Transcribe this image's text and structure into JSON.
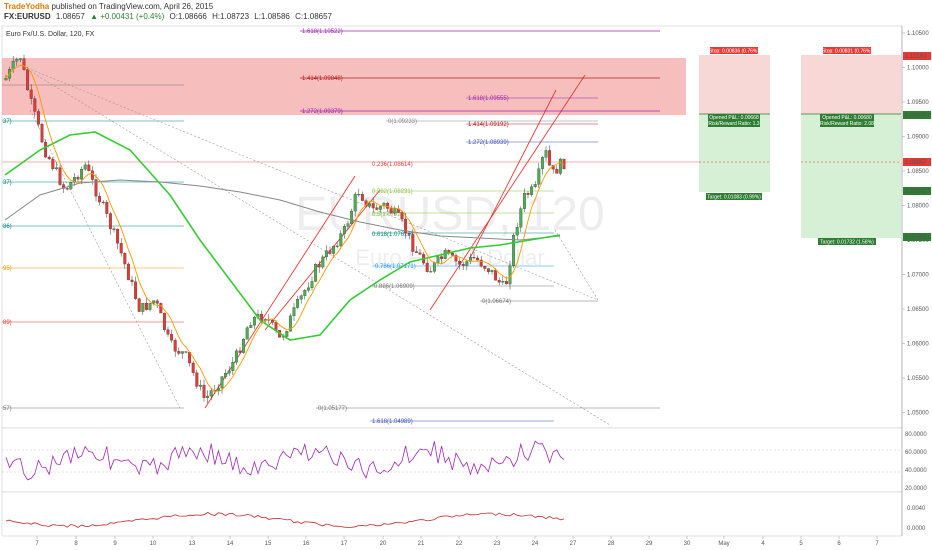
{
  "header": {
    "brand": "TradeYodha",
    "published": "published on TradingView.com, April 26, 2015",
    "symbol": "FX:EURUSD",
    "last": "1.08657",
    "change": "▲ +0.00431 (+0.4%)",
    "open": "O:1.08666",
    "high": "H:1.08723",
    "low": "L:1.08586",
    "close": "C:1.08657"
  },
  "chart_title": "Euro Fx/U.S. Dollar, 120, FX",
  "watermark": {
    "symbol": "EURUSD, 120",
    "name": "Euro Fx/U.S. Dollar"
  },
  "colors": {
    "up_candle": "#4caf50",
    "down_candle": "#e53935",
    "sma_slow": "#ff9800",
    "ema_green": "#33cc33",
    "ma_long": "#888888",
    "rsi": "#9c27b0",
    "osc": "#c62828",
    "stop_zone": "#f8d7d7",
    "target_zone": "#d5f0d5",
    "supply_zone": "#f4a8a8"
  },
  "price_axis": {
    "ticks": [
      "1.10500",
      "1.10000",
      "1.09500",
      "1.09000",
      "1.08500",
      "1.08000",
      "1.07500",
      "1.07000",
      "1.06500",
      "1.06000",
      "1.05500",
      "1.05000"
    ],
    "highlight_labels": [
      {
        "text": "1.10161",
        "color": "#e53935"
      },
      {
        "text": "1.09325",
        "color": "#2e7d32"
      },
      {
        "text": "1.08657",
        "color": "#e53935"
      },
      {
        "text": "1.08242",
        "color": "#2e7d32"
      },
      {
        "text": "1.07605",
        "color": "#2e7d32"
      }
    ]
  },
  "rsi_axis": {
    "ticks": [
      "80.0000",
      "60.0000",
      "40.0000",
      "20.0000"
    ]
  },
  "osc_axis": {
    "ticks": [
      "0.0040",
      "0.0000"
    ]
  },
  "time_axis": {
    "ticks": [
      "7",
      "8",
      "9",
      "10",
      "13",
      "14",
      "15",
      "16",
      "17",
      "20",
      "21",
      "22",
      "23",
      "24",
      "27",
      "28",
      "29",
      "30",
      "May",
      "4",
      "5",
      "6",
      "7"
    ]
  },
  "fib_top": [
    {
      "text": "1.618(1.10522)",
      "color": "#9c27b0"
    },
    {
      "text": "1.414(1.09848)",
      "color": "#b71c1c"
    },
    {
      "text": "1.272(1.09379)",
      "color": "#9c27b0"
    },
    {
      "text": "0(1.09233)",
      "color": "#888888"
    },
    {
      "text": "1.618(1.09555)",
      "color": "#9c27b0"
    },
    {
      "text": "1.414(1.09192)",
      "color": "#b71c1c"
    },
    {
      "text": "1.272(1.08939)",
      "color": "#3f51b5"
    },
    {
      "text": "0.236(1.08614)",
      "color": "#e53935"
    },
    {
      "text": "0.382(1.08231)",
      "color": "#8bc34a"
    },
    {
      "text": "0.5(1.07921)",
      "color": "#8bc34a"
    },
    {
      "text": "0.618(1.07612)",
      "color": "#00897b"
    },
    {
      "text": "0.786(1.07171)",
      "color": "#2196f3"
    },
    {
      "text": "0.886(1.06909)",
      "color": "#777777"
    },
    {
      "text": "0(1.06674)",
      "color": "#777777"
    },
    {
      "text": "0(1.05177)",
      "color": "#777777"
    },
    {
      "text": "1.618(1.04989)",
      "color": "#3f51b5"
    }
  ],
  "fib_left_partial": [
    {
      "text": "37)",
      "color": "#00897b"
    },
    {
      "text": "37)",
      "color": "#00897b"
    },
    {
      "text": "86)",
      "color": "#00897b"
    },
    {
      "text": "95)",
      "color": "#ff9800"
    },
    {
      "text": "89)",
      "color": "#e53935"
    },
    {
      "text": "57)",
      "color": "#777777"
    }
  ],
  "positions": [
    {
      "stop": "Stop: 0.00836 (0.76%)",
      "opened": "Opened P&L: 0.00668",
      "rr": "Risk/Reward Ratio: 1.3",
      "target": "Target: 0.01083 (0.99%)"
    },
    {
      "stop": "Stop: 0.00831 (0.76%)",
      "opened": "Opened P&L: 0.00680",
      "rr": "Risk/Reward Ratio: 2.08",
      "target": "Target: 0.01732 (1.58%)"
    }
  ]
}
